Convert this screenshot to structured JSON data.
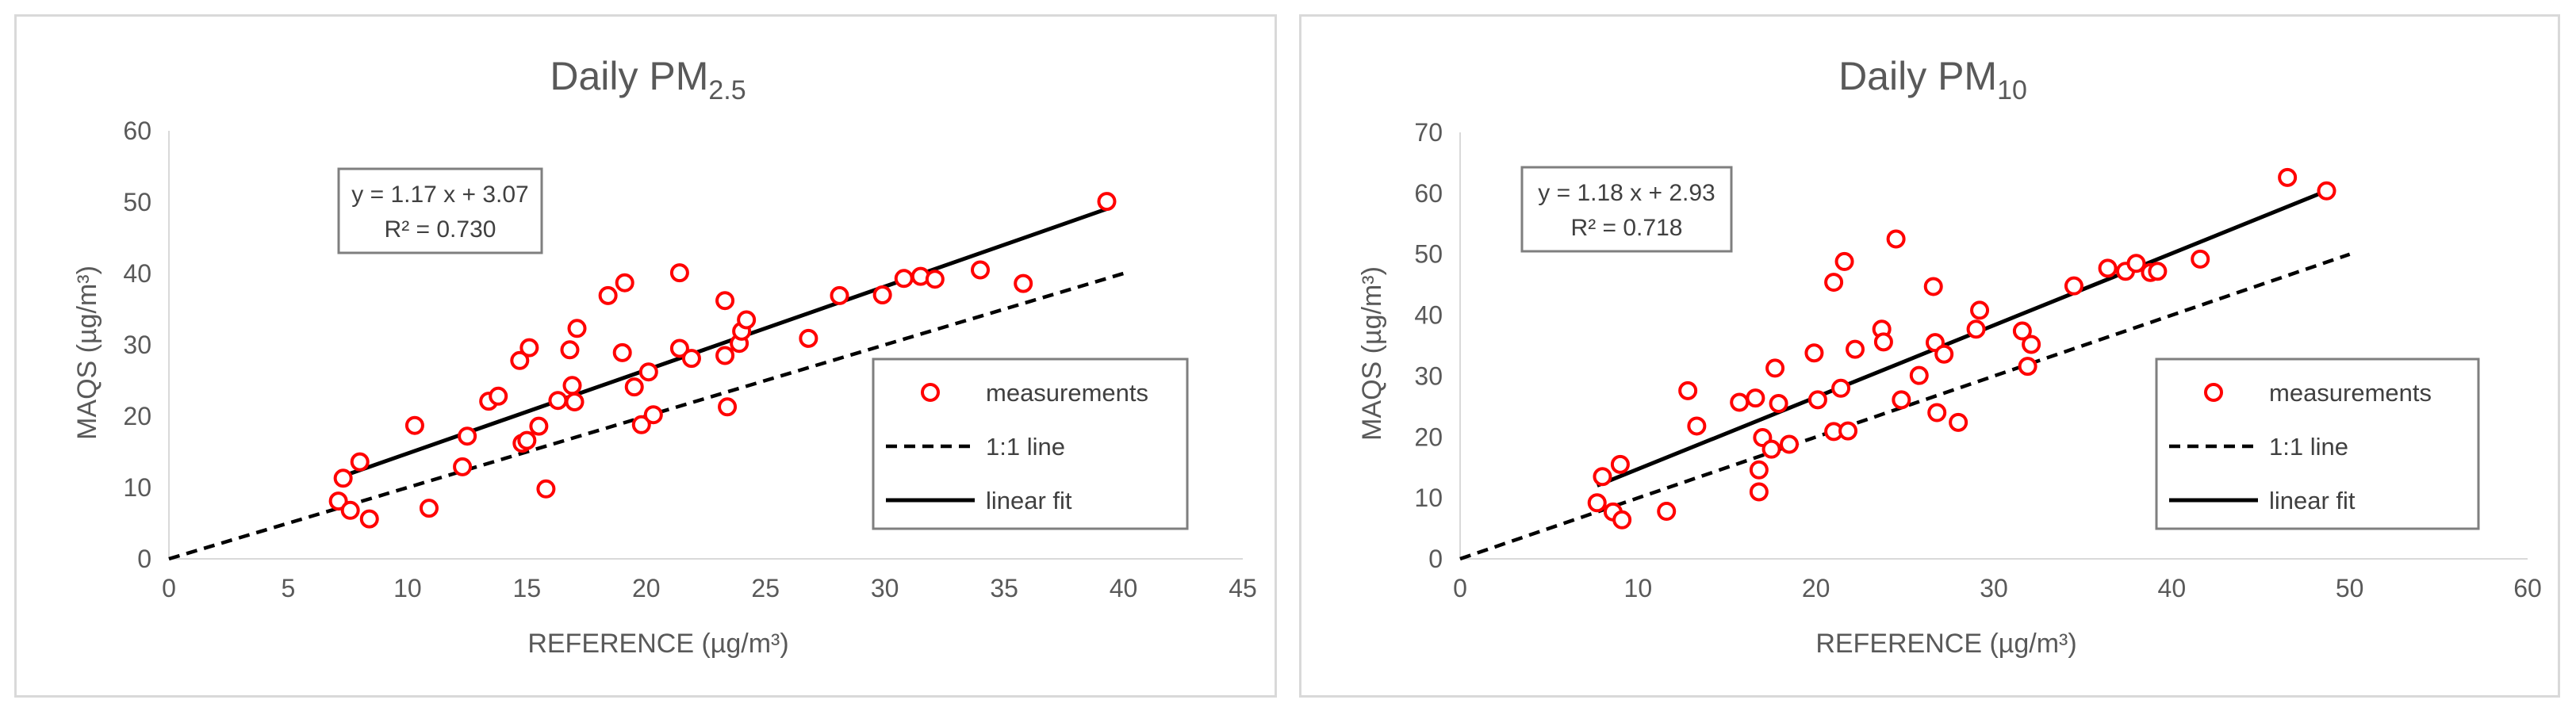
{
  "chart_data": [
    {
      "type": "scatter",
      "title": "Daily PM",
      "title_sub": "2.5",
      "xlabel": "REFERENCE (µg/m³)",
      "ylabel": "MAQS (µg/m³)",
      "xlim": [
        0,
        45
      ],
      "ylim": [
        0,
        60
      ],
      "xticks": [
        "0",
        "5",
        "10",
        "15",
        "20",
        "25",
        "30",
        "35",
        "40",
        "45"
      ],
      "yticks": [
        "0",
        "10",
        "20",
        "30",
        "40",
        "50",
        "60"
      ],
      "grid": false,
      "equation": "y = 1.17 x + 3.07",
      "r_squared": "R² = 0.730",
      "legend_position": "bottom-right",
      "series": [
        {
          "name": "measurements",
          "kind": "scatter",
          "color": "#ff0000",
          "x": [
            7.1,
            7.3,
            7.6,
            8.0,
            8.4,
            10.3,
            10.9,
            12.3,
            12.5,
            13.4,
            13.8,
            14.7,
            14.8,
            15.0,
            15.1,
            15.5,
            15.8,
            16.3,
            16.8,
            16.9,
            17.0,
            17.1,
            18.4,
            19.0,
            19.1,
            19.5,
            19.8,
            20.1,
            20.3,
            21.4,
            21.4,
            21.9,
            23.3,
            23.3,
            23.4,
            23.9,
            24.0,
            24.2,
            26.8,
            28.1,
            29.9,
            30.8,
            31.5,
            32.1,
            34.0,
            35.8,
            39.3
          ],
          "y": [
            8.1,
            11.3,
            6.8,
            13.6,
            5.6,
            18.7,
            7.1,
            12.9,
            17.2,
            22.1,
            22.8,
            27.8,
            16.2,
            16.6,
            29.6,
            18.6,
            9.8,
            22.2,
            29.3,
            24.3,
            22.0,
            32.3,
            36.9,
            28.9,
            38.7,
            24.1,
            18.8,
            26.2,
            20.2,
            40.1,
            29.5,
            28.1,
            28.5,
            36.2,
            21.3,
            30.2,
            31.9,
            33.5,
            30.9,
            36.9,
            37.0,
            39.3,
            39.6,
            39.2,
            40.5,
            38.6,
            50.1
          ]
        },
        {
          "name": "1:1 line",
          "kind": "line",
          "style": "dashed",
          "x": [
            0,
            40
          ],
          "y": [
            0,
            40
          ]
        },
        {
          "name": "linear fit",
          "kind": "line",
          "style": "solid",
          "x": [
            7.1,
            39.3
          ],
          "y": [
            11.38,
            49.05
          ]
        }
      ]
    },
    {
      "type": "scatter",
      "title": "Daily PM",
      "title_sub": "10",
      "xlabel": "REFERENCE (µg/m³)",
      "ylabel": "MAQS (µg/m³)",
      "xlim": [
        0,
        60
      ],
      "ylim": [
        0,
        70
      ],
      "xticks": [
        "0",
        "10",
        "20",
        "30",
        "40",
        "50",
        "60"
      ],
      "yticks": [
        "0",
        "10",
        "20",
        "30",
        "40",
        "50",
        "60",
        "70"
      ],
      "grid": false,
      "equation": "y = 1.18 x + 2.93",
      "r_squared": "R² = 0.718",
      "legend_position": "bottom-right",
      "series": [
        {
          "name": "measurements",
          "kind": "scatter",
          "color": "#ff0000",
          "x": [
            7.7,
            8.0,
            8.6,
            9.0,
            9.1,
            11.6,
            12.8,
            13.3,
            15.7,
            16.6,
            16.8,
            16.8,
            17.0,
            17.5,
            17.7,
            17.9,
            18.5,
            19.9,
            20.1,
            21.0,
            21.0,
            21.4,
            21.6,
            21.8,
            22.2,
            23.7,
            23.8,
            24.5,
            24.8,
            25.8,
            26.6,
            26.7,
            26.8,
            27.2,
            28.0,
            29.0,
            29.2,
            31.6,
            31.9,
            32.1,
            34.5,
            36.4,
            37.4,
            38.0,
            38.8,
            39.2,
            41.6,
            46.5,
            48.7
          ],
          "y": [
            9.2,
            13.5,
            7.7,
            15.5,
            6.4,
            7.8,
            27.6,
            21.8,
            25.7,
            26.4,
            14.6,
            11.0,
            19.9,
            18.0,
            31.3,
            25.5,
            18.8,
            33.8,
            26.1,
            20.9,
            45.4,
            28.0,
            48.8,
            21.0,
            34.4,
            37.7,
            35.6,
            52.5,
            26.1,
            30.1,
            44.7,
            35.5,
            24.0,
            33.6,
            22.4,
            37.7,
            40.8,
            37.4,
            31.6,
            35.2,
            44.8,
            47.7,
            47.2,
            48.5,
            47.0,
            47.2,
            49.2,
            62.6,
            60.4
          ]
        },
        {
          "name": "1:1 line",
          "kind": "line",
          "style": "dashed",
          "x": [
            0,
            50
          ],
          "y": [
            0,
            50
          ]
        },
        {
          "name": "linear fit",
          "kind": "line",
          "style": "solid",
          "x": [
            7.7,
            48.7
          ],
          "y": [
            12.02,
            60.4
          ]
        }
      ]
    }
  ]
}
